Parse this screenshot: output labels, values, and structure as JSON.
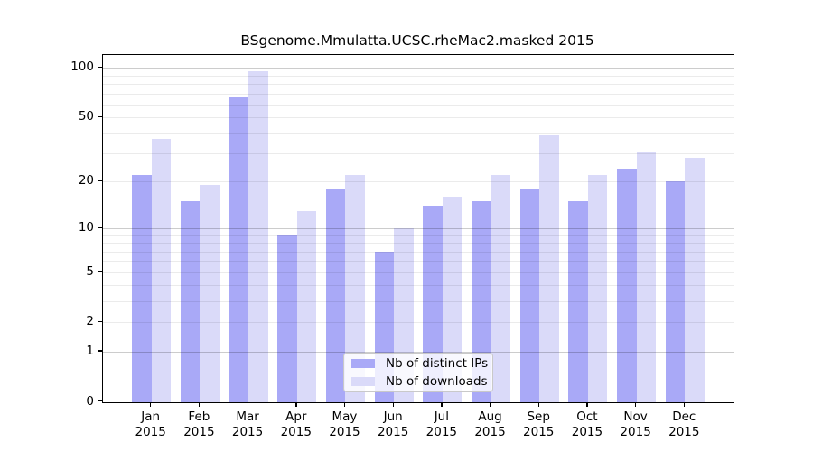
{
  "chart_data": {
    "type": "bar",
    "title": "BSgenome.Mmulatta.UCSC.rheMac2.masked 2015",
    "categories": [
      "Jan 2015",
      "Feb 2015",
      "Mar 2015",
      "Apr 2015",
      "May 2015",
      "Jun 2015",
      "Jul 2015",
      "Aug 2015",
      "Sep 2015",
      "Oct 2015",
      "Nov 2015",
      "Dec 2015"
    ],
    "series": [
      {
        "name": "Nb of distinct IPs",
        "color": "#a9a9f7",
        "values": [
          22,
          15,
          67,
          9,
          18,
          7,
          14,
          15,
          18,
          15,
          24,
          20
        ]
      },
      {
        "name": "Nb of downloads",
        "color": "#dadaf9",
        "values": [
          37,
          19,
          95,
          13,
          22,
          10,
          16,
          22,
          39,
          22,
          31,
          28
        ]
      }
    ],
    "y_scale": "log1p",
    "y_tick_values": [
      0,
      1,
      2,
      5,
      10,
      20,
      50,
      100
    ],
    "y_tick_labels": [
      "0",
      "1",
      "2",
      "5",
      "10",
      "20",
      "50",
      "100"
    ],
    "grid_minor_values": [
      2,
      3,
      4,
      5,
      6,
      7,
      8,
      9,
      20,
      30,
      40,
      50,
      60,
      70,
      80,
      90
    ],
    "grid_major_values": [
      1,
      10,
      100
    ],
    "ylim": [
      0,
      110
    ],
    "legend_position": "lower center",
    "xlabel": "",
    "ylabel": ""
  }
}
